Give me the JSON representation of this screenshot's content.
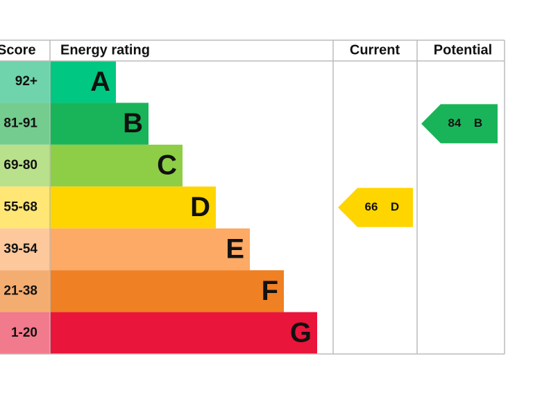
{
  "header": {
    "score": "Score",
    "rating": "Energy rating",
    "current": "Current",
    "potential": "Potential"
  },
  "bands": [
    {
      "score": "92+",
      "letter": "A",
      "color": "#00c781",
      "tint": "#6fd3ac"
    },
    {
      "score": "81-91",
      "letter": "B",
      "color": "#19b459",
      "tint": "#74cc8e"
    },
    {
      "score": "69-80",
      "letter": "C",
      "color": "#8dce46",
      "tint": "#b9e08b"
    },
    {
      "score": "55-68",
      "letter": "D",
      "color": "#ffd500",
      "tint": "#ffe675"
    },
    {
      "score": "39-54",
      "letter": "E",
      "color": "#fcaa65",
      "tint": "#fdc89c"
    },
    {
      "score": "21-38",
      "letter": "F",
      "color": "#ef8023",
      "tint": "#f4ad70"
    },
    {
      "score": "1-20",
      "letter": "G",
      "color": "#e9153b",
      "tint": "#f17a8c"
    }
  ],
  "current": {
    "value": "66",
    "letter": "D"
  },
  "potential": {
    "value": "84",
    "letter": "B"
  }
}
